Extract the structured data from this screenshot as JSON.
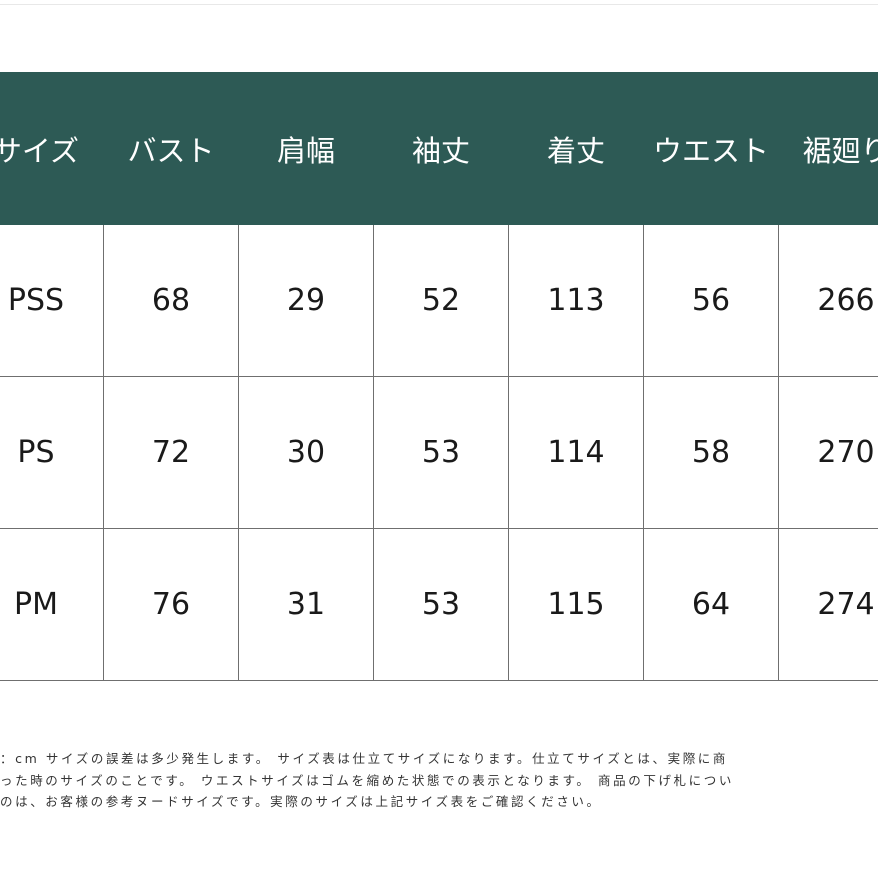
{
  "table": {
    "headers": [
      "サイズ",
      "バスト",
      "肩幅",
      "袖丈",
      "着丈",
      "ウエスト",
      "裾廻り"
    ],
    "rows": [
      {
        "size": "PSS",
        "bust": "68",
        "shoulder": "29",
        "sleeve": "52",
        "length": "113",
        "waist": "56",
        "hem": "266"
      },
      {
        "size": "PS",
        "bust": "72",
        "shoulder": "30",
        "sleeve": "53",
        "length": "114",
        "waist": "58",
        "hem": "270"
      },
      {
        "size": "PM",
        "bust": "76",
        "shoulder": "31",
        "sleeve": "53",
        "length": "115",
        "waist": "64",
        "hem": "274"
      }
    ]
  },
  "notes": {
    "line1": "：cm サイズの誤差は多少発生します。 サイズ表は仕立てサイズになります。仕立てサイズとは、実際に商",
    "line2": "った時のサイズのことです。 ウエストサイズはゴムを縮めた状態での表示となります。 商品の下げ札につい",
    "line3": "のは、お客様の参考ヌードサイズです。実際のサイズは上記サイズ表をご確認ください。"
  },
  "colors": {
    "header_bg": "#2d5a55",
    "header_text": "#ffffff",
    "grid_line": "#6f6f6f"
  }
}
